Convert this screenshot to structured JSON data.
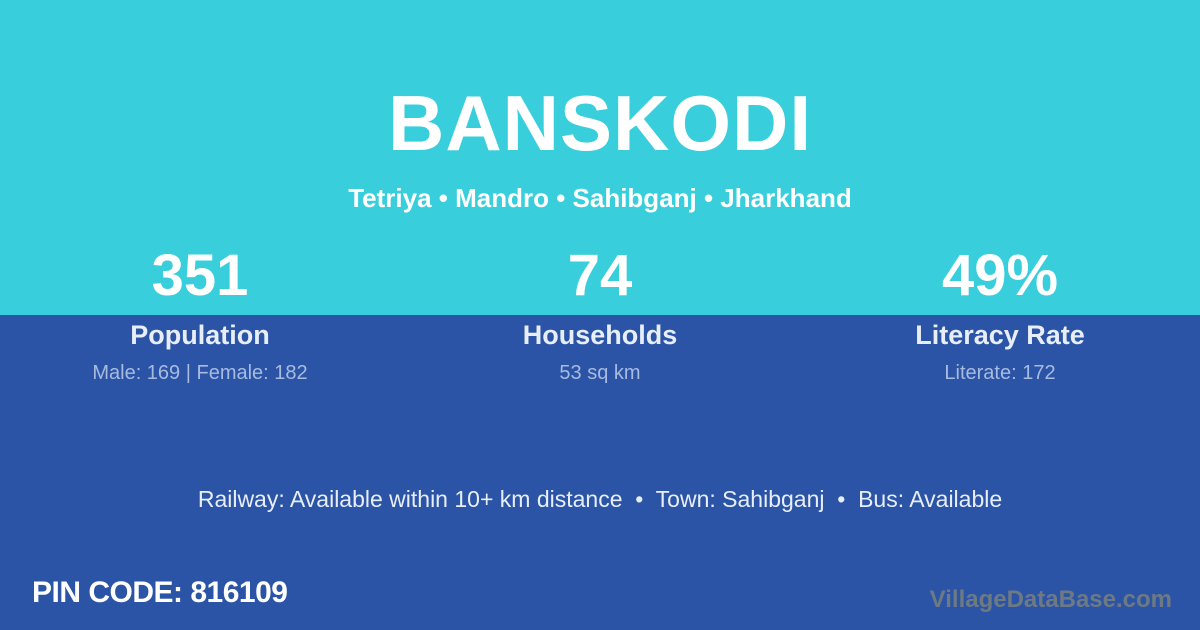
{
  "header": {
    "title": "BANSKODI",
    "subtitle": "Tetriya • Mandro • Sahibganj • Jharkhand"
  },
  "stats": [
    {
      "value": "351",
      "label": "Population",
      "detail": "Male: 169 | Female: 182"
    },
    {
      "value": "74",
      "label": "Households",
      "detail": "53 sq km"
    },
    {
      "value": "49%",
      "label": "Literacy Rate",
      "detail": "Literate: 172"
    }
  ],
  "footer": {
    "transport_info": "Railway: Available within 10+ km distance  •  Town: Sahibganj  •  Bus: Available",
    "pin_code": "PIN CODE: 816109",
    "watermark": "VillageDataBase.com"
  },
  "colors": {
    "top_background": "#38cedb",
    "bottom_background": "#2b54a6",
    "primary_text": "#ffffff",
    "label_text": "#e8eef8",
    "detail_text": "#a7bbdf",
    "watermark_text": "#6d7a84"
  }
}
